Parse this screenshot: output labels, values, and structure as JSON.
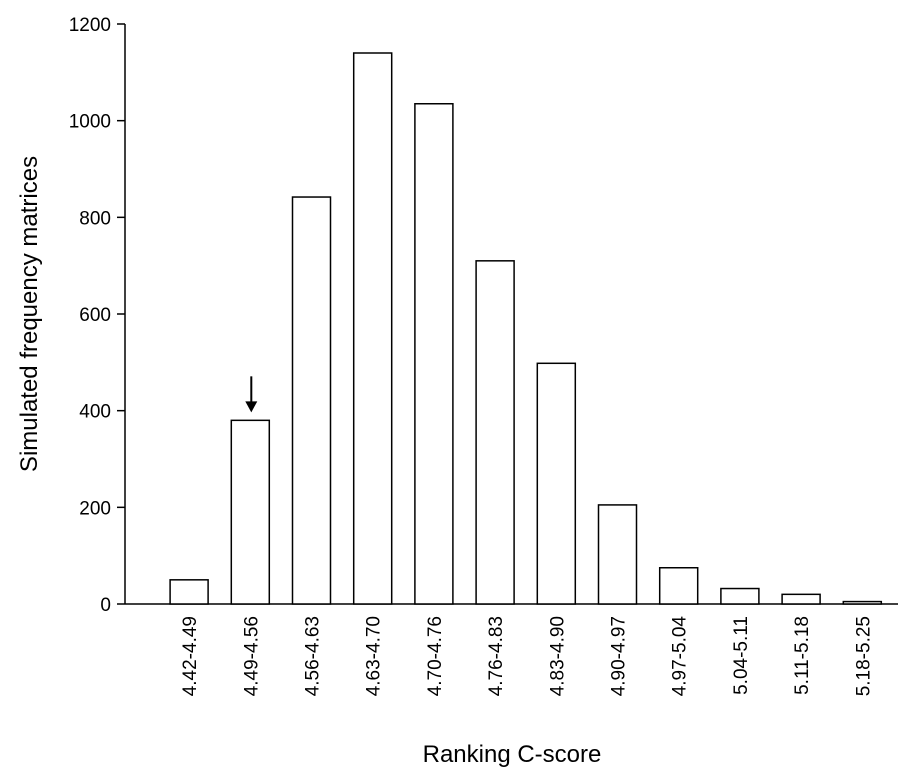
{
  "chart_data": {
    "type": "bar",
    "title": "",
    "xlabel": "Ranking C-score",
    "ylabel": "Simulated frequency matrices",
    "categories": [
      "4.42-4.49",
      "4.49-4.56",
      "4.56-4.63",
      "4.63-4.70",
      "4.70-4.76",
      "4.76-4.83",
      "4.83-4.90",
      "4.90-4.97",
      "4.97-5.04",
      "5.04-5.11",
      "5.11-5.18",
      "5.18-5.25"
    ],
    "values": [
      50,
      380,
      842,
      1140,
      1035,
      710,
      498,
      205,
      75,
      32,
      20,
      5
    ],
    "ylim": [
      0,
      1200
    ],
    "yticks": [
      "0",
      "200",
      "400",
      "600",
      "800",
      "1000",
      "1200"
    ],
    "grid": false,
    "bar_color": "#ffffff",
    "bar_edge_color": "#000000",
    "annotation": {
      "type": "arrow",
      "category": "4.49-4.56",
      "direction": "down"
    }
  }
}
